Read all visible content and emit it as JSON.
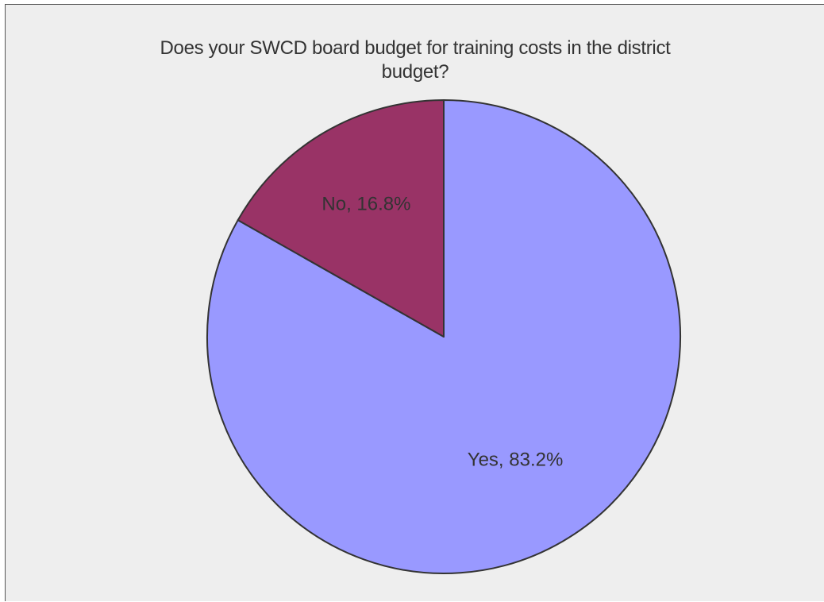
{
  "chart_data": {
    "type": "pie",
    "title_lines": [
      "Does your SWCD board budget for training costs in the district",
      "budget?"
    ],
    "categories": [
      "Yes",
      "No"
    ],
    "values": [
      83.2,
      16.8
    ],
    "labels": [
      "Yes, 83.2%",
      "No, 16.8%"
    ],
    "colors": [
      "#9999ff",
      "#993366"
    ],
    "start_angle_deg": 0,
    "direction": "clockwise",
    "legend": "none"
  },
  "colors": {
    "background": "#eeeeee",
    "slice_stroke": "#333333",
    "text": "#333333"
  }
}
